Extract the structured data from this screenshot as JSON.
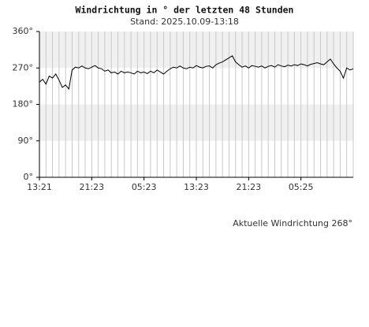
{
  "chart_data": {
    "type": "line",
    "title": "Windrichtung in ° der letzten 48 Stunden",
    "subtitle": "Stand: 2025.10.09-13:18",
    "annotation": "Aktuelle Windrichtung 268°",
    "x": [
      0,
      0.5,
      1,
      1.5,
      2,
      2.5,
      3,
      3.5,
      4,
      4.5,
      5,
      5.5,
      6,
      6.5,
      7,
      7.5,
      8,
      8.5,
      9,
      9.5,
      10,
      10.5,
      11,
      11.5,
      12,
      12.5,
      13,
      13.5,
      14,
      14.5,
      15,
      15.5,
      16,
      16.5,
      17,
      17.5,
      18,
      18.5,
      19,
      19.5,
      20,
      20.5,
      21,
      21.5,
      22,
      22.5,
      23,
      23.5,
      24,
      24.5,
      25,
      25.5,
      26,
      26.5,
      27,
      27.5,
      28,
      28.5,
      29,
      29.5,
      30,
      30.5,
      31,
      31.5,
      32,
      32.5,
      33,
      33.5,
      34,
      34.5,
      35,
      35.5,
      36,
      36.5,
      37,
      37.5,
      38,
      38.5,
      39,
      39.5,
      40,
      40.5,
      41,
      41.5,
      42,
      42.5,
      43,
      43.5,
      44,
      44.5,
      45,
      45.5,
      46,
      46.5,
      47,
      47.5,
      48
    ],
    "series": [
      {
        "color": "#000000",
        "values": [
          235,
          242,
          230,
          250,
          245,
          255,
          240,
          222,
          228,
          218,
          265,
          272,
          270,
          275,
          270,
          268,
          272,
          276,
          270,
          268,
          262,
          265,
          258,
          260,
          255,
          262,
          258,
          260,
          258,
          255,
          262,
          258,
          260,
          256,
          262,
          258,
          265,
          260,
          255,
          262,
          268,
          272,
          270,
          275,
          270,
          268,
          272,
          270,
          276,
          272,
          270,
          274,
          275,
          270,
          278,
          282,
          285,
          290,
          295,
          300,
          285,
          278,
          272,
          275,
          270,
          276,
          274,
          272,
          275,
          270,
          274,
          276,
          272,
          278,
          275,
          273,
          277,
          275,
          278,
          276,
          280,
          278,
          275,
          279,
          281,
          283,
          280,
          278,
          285,
          292,
          280,
          270,
          262,
          245,
          270,
          265,
          268
        ]
      }
    ],
    "xlim": [
      0,
      48
    ],
    "xticks": [
      {
        "value": 0,
        "label": "13:21"
      },
      {
        "value": 8,
        "label": "21:23"
      },
      {
        "value": 16,
        "label": "05:23"
      },
      {
        "value": 24,
        "label": "13:23"
      },
      {
        "value": 32,
        "label": "21:23"
      },
      {
        "value": 40,
        "label": "05:25"
      }
    ],
    "ylim": [
      0,
      360
    ],
    "yticks": [
      {
        "value": 0,
        "label": "0°"
      },
      {
        "value": 90,
        "label": "90°"
      },
      {
        "value": 180,
        "label": "180°"
      },
      {
        "value": 270,
        "label": "270°"
      },
      {
        "value": 360,
        "label": "360°"
      }
    ],
    "grid": true
  }
}
